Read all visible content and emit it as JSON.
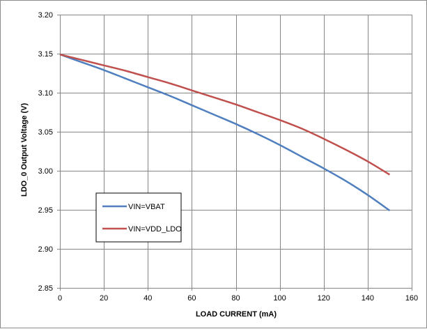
{
  "chart_data": {
    "type": "line",
    "xlabel": "LOAD CURRENT (mA)",
    "ylabel": "LDO_0 Output Voltage (V)",
    "xlim": [
      0,
      160
    ],
    "ylim": [
      2.85,
      3.2
    ],
    "x_ticks": [
      0,
      20,
      40,
      60,
      80,
      100,
      120,
      140,
      160
    ],
    "y_ticks": [
      2.85,
      2.9,
      2.95,
      3.0,
      3.05,
      3.1,
      3.15,
      3.2
    ],
    "x_tick_labels": [
      "0",
      "20",
      "40",
      "60",
      "80",
      "100",
      "120",
      "140",
      "160"
    ],
    "y_tick_labels": [
      "2.85",
      "2.90",
      "2.95",
      "3.00",
      "3.05",
      "3.10",
      "3.15",
      "3.20"
    ],
    "grid": true,
    "legend_position": "lower-left",
    "series": [
      {
        "name": "VIN=VBAT",
        "color": "#4f7fbe",
        "x": [
          0,
          10,
          20,
          30,
          40,
          50,
          60,
          70,
          80,
          90,
          100,
          110,
          120,
          130,
          140,
          150
        ],
        "y": [
          3.149,
          3.139,
          3.129,
          3.118,
          3.107,
          3.096,
          3.084,
          3.072,
          3.06,
          3.047,
          3.033,
          3.018,
          3.003,
          2.987,
          2.969,
          2.949
        ]
      },
      {
        "name": "VIN=VDD_LDO",
        "color": "#c0504d",
        "x": [
          0,
          10,
          20,
          30,
          40,
          50,
          60,
          70,
          80,
          90,
          100,
          110,
          120,
          130,
          140,
          150
        ],
        "y": [
          3.149,
          3.142,
          3.135,
          3.128,
          3.12,
          3.112,
          3.103,
          3.094,
          3.085,
          3.075,
          3.065,
          3.054,
          3.041,
          3.027,
          3.012,
          2.995
        ]
      }
    ]
  }
}
